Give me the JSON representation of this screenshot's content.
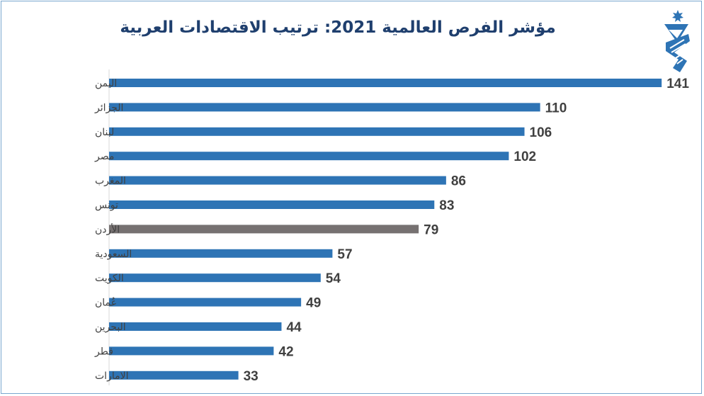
{
  "colors": {
    "bar": "#2e74b5",
    "highlight": "#767171",
    "label": "#404040",
    "title": "#1f3f6e"
  },
  "logo": {
    "icon": "org-logo-icon"
  },
  "chart_data": {
    "type": "bar",
    "orientation": "horizontal",
    "title": "مؤشر الفرص العالمية 2021: ترتيب الاقتصادات العربية",
    "xlabel": "",
    "ylabel": "",
    "xlim": [
      0,
      150
    ],
    "grid": false,
    "legend": "none",
    "highlight_category": "الأردن",
    "categories": [
      "اليمن",
      "الجزائر",
      "لبنان",
      "مصر",
      "المغرب",
      "تونس",
      "الأردن",
      "السعودية",
      "الكويت",
      "عُمان",
      "البحرين",
      "قطر",
      "الامارات"
    ],
    "values": [
      141,
      110,
      106,
      102,
      86,
      83,
      79,
      57,
      54,
      49,
      44,
      42,
      33
    ]
  }
}
